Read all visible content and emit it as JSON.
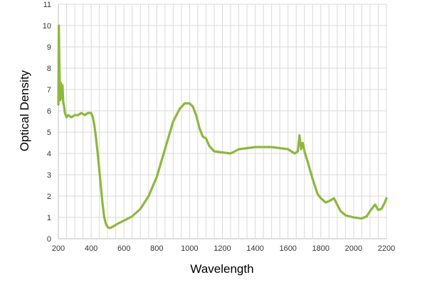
{
  "chart_data": {
    "type": "line",
    "title": "",
    "xlabel": "Wavelength",
    "ylabel": "Optical Density",
    "xlim": [
      200,
      2200
    ],
    "ylim": [
      0,
      11
    ],
    "x_ticks": [
      200,
      400,
      600,
      800,
      1000,
      1200,
      1400,
      1600,
      1800,
      2000,
      2200
    ],
    "y_ticks": [
      0,
      1,
      2,
      3,
      4,
      5,
      6,
      7,
      8,
      9,
      10,
      11
    ],
    "x_minor_step": 50,
    "grid": true,
    "legend": "none",
    "series": [
      {
        "color": "#8db83e",
        "x": [
          200,
          203,
          206,
          209,
          212,
          215,
          220,
          225,
          230,
          235,
          240,
          250,
          260,
          280,
          300,
          320,
          340,
          360,
          380,
          400,
          410,
          420,
          430,
          440,
          450,
          460,
          470,
          480,
          490,
          500,
          510,
          520,
          540,
          560,
          600,
          650,
          700,
          750,
          800,
          850,
          900,
          940,
          970,
          1000,
          1020,
          1040,
          1060,
          1080,
          1100,
          1120,
          1150,
          1200,
          1250,
          1300,
          1350,
          1400,
          1450,
          1500,
          1550,
          1600,
          1640,
          1660,
          1670,
          1680,
          1690,
          1700,
          1720,
          1750,
          1780,
          1800,
          1830,
          1860,
          1880,
          1900,
          1920,
          1950,
          2000,
          2050,
          2080,
          2100,
          2130,
          2150,
          2170,
          2190,
          2200
        ],
        "y": [
          6.3,
          10.0,
          8.2,
          7.0,
          6.5,
          7.3,
          6.6,
          7.2,
          6.4,
          6.2,
          5.9,
          5.7,
          5.8,
          5.7,
          5.8,
          5.8,
          5.9,
          5.8,
          5.9,
          5.9,
          5.7,
          5.3,
          4.7,
          4.0,
          3.2,
          2.4,
          1.6,
          1.0,
          0.7,
          0.55,
          0.5,
          0.52,
          0.6,
          0.7,
          0.85,
          1.05,
          1.4,
          2.0,
          2.9,
          4.2,
          5.5,
          6.1,
          6.35,
          6.35,
          6.2,
          5.8,
          5.2,
          4.8,
          4.7,
          4.35,
          4.1,
          4.05,
          4.0,
          4.2,
          4.25,
          4.3,
          4.3,
          4.3,
          4.25,
          4.2,
          4.0,
          4.1,
          4.85,
          4.2,
          4.5,
          4.1,
          3.6,
          2.8,
          2.1,
          1.9,
          1.7,
          1.8,
          1.9,
          1.6,
          1.3,
          1.1,
          1.0,
          0.95,
          1.05,
          1.3,
          1.6,
          1.35,
          1.4,
          1.7,
          1.9
        ]
      }
    ]
  }
}
